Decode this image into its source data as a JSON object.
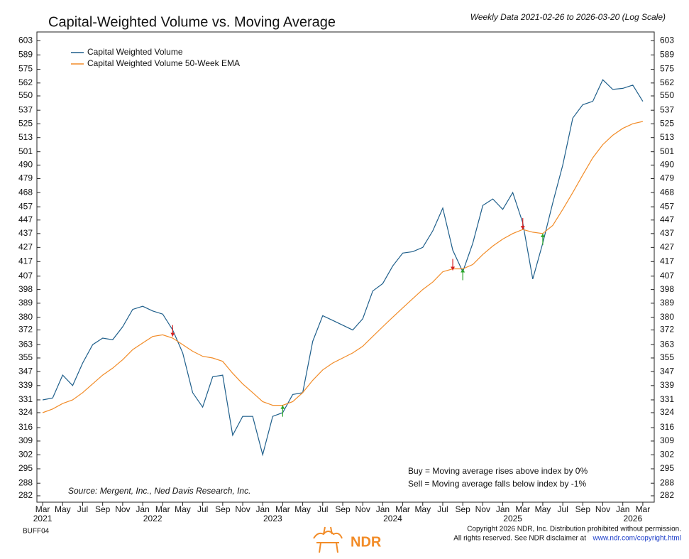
{
  "chart_data": {
    "type": "line",
    "title": "Capital-Weighted Volume vs. Moving Average",
    "subtitle": "Weekly Data 2021-02-26 to 2026-03-20 (Log Scale)",
    "log_scale": true,
    "legend_position": "upper-left",
    "x": [
      "2021-03",
      "2021-04",
      "2021-05",
      "2021-06",
      "2021-07",
      "2021-08",
      "2021-09",
      "2021-10",
      "2021-11",
      "2021-12",
      "2022-01",
      "2022-02",
      "2022-03",
      "2022-04",
      "2022-05",
      "2022-06",
      "2022-07",
      "2022-08",
      "2022-09",
      "2022-10",
      "2022-11",
      "2022-12",
      "2023-01",
      "2023-02",
      "2023-03",
      "2023-04",
      "2023-05",
      "2023-06",
      "2023-07",
      "2023-08",
      "2023-09",
      "2023-10",
      "2023-11",
      "2023-12",
      "2024-01",
      "2024-02",
      "2024-03",
      "2024-04",
      "2024-05",
      "2024-06",
      "2024-07",
      "2024-08",
      "2024-09",
      "2024-10",
      "2024-11",
      "2024-12",
      "2025-01",
      "2025-02",
      "2025-03",
      "2025-04",
      "2025-05",
      "2025-06",
      "2025-07",
      "2025-08",
      "2025-09",
      "2025-10",
      "2025-11",
      "2025-12",
      "2026-01",
      "2026-02",
      "2026-03"
    ],
    "series": [
      {
        "name": "Capital Weighted Volume",
        "color": "#1f5f8b",
        "values": [
          331,
          332,
          345,
          339,
          352,
          363,
          367,
          366,
          374,
          385,
          387,
          384,
          382,
          372,
          358,
          335,
          327,
          344,
          345,
          312,
          322,
          322,
          302,
          322,
          324,
          334,
          335,
          365,
          381,
          378,
          375,
          372,
          379,
          397,
          402,
          414,
          423,
          424,
          427,
          439,
          456,
          425,
          410,
          430,
          458,
          463,
          455,
          468,
          445,
          405,
          430,
          460,
          490,
          530,
          542,
          545,
          565,
          556,
          557,
          560,
          545
        ]
      },
      {
        "name": "Capital Weighted Volume 50-Week EMA",
        "color": "#f28c28",
        "values": [
          324,
          326,
          329,
          331,
          335,
          340,
          345,
          349,
          354,
          360,
          364,
          368,
          369,
          367,
          363,
          359,
          356,
          355,
          353,
          346,
          340,
          335,
          330,
          328,
          328,
          330,
          335,
          342,
          348,
          352,
          355,
          358,
          362,
          368,
          374,
          380,
          386,
          392,
          398,
          403,
          410,
          412,
          412,
          415,
          422,
          428,
          433,
          437,
          440,
          438,
          437,
          443,
          455,
          468,
          482,
          496,
          507,
          515,
          521,
          525,
          527
        ]
      }
    ],
    "sell_signals": {
      "color": "#d62020",
      "x": [
        "2022-04",
        "2024-08",
        "2025-03"
      ],
      "values": [
        368,
        411,
        440
      ]
    },
    "buy_signals": {
      "color": "#2aa52a",
      "x": [
        "2023-03",
        "2024-09",
        "2025-05"
      ],
      "values": [
        328,
        412,
        437
      ]
    },
    "xlim": [
      "2021-02",
      "2026-04"
    ],
    "xticks": [
      {
        "value": "2021-03",
        "label": "Mar"
      },
      {
        "value": "2021-05",
        "label": "May"
      },
      {
        "value": "2021-07",
        "label": "Jul"
      },
      {
        "value": "2021-09",
        "label": "Sep"
      },
      {
        "value": "2021-11",
        "label": "Nov"
      },
      {
        "value": "2022-01",
        "label": "Jan"
      },
      {
        "value": "2022-03",
        "label": "Mar"
      },
      {
        "value": "2022-05",
        "label": "May"
      },
      {
        "value": "2022-07",
        "label": "Jul"
      },
      {
        "value": "2022-09",
        "label": "Sep"
      },
      {
        "value": "2022-11",
        "label": "Nov"
      },
      {
        "value": "2023-01",
        "label": "Jan"
      },
      {
        "value": "2023-03",
        "label": "Mar"
      },
      {
        "value": "2023-05",
        "label": "May"
      },
      {
        "value": "2023-07",
        "label": "Jul"
      },
      {
        "value": "2023-09",
        "label": "Sep"
      },
      {
        "value": "2023-11",
        "label": "Nov"
      },
      {
        "value": "2024-01",
        "label": "Jan"
      },
      {
        "value": "2024-03",
        "label": "Mar"
      },
      {
        "value": "2024-05",
        "label": "May"
      },
      {
        "value": "2024-07",
        "label": "Jul"
      },
      {
        "value": "2024-09",
        "label": "Sep"
      },
      {
        "value": "2024-11",
        "label": "Nov"
      },
      {
        "value": "2025-01",
        "label": "Jan"
      },
      {
        "value": "2025-03",
        "label": "Mar"
      },
      {
        "value": "2025-05",
        "label": "May"
      },
      {
        "value": "2025-07",
        "label": "Jul"
      },
      {
        "value": "2025-09",
        "label": "Sep"
      },
      {
        "value": "2025-11",
        "label": "Nov"
      },
      {
        "value": "2026-01",
        "label": "Jan"
      },
      {
        "value": "2026-03",
        "label": "Mar"
      }
    ],
    "xyears": [
      {
        "value": "2021-03",
        "label": "2021"
      },
      {
        "value": "2022-02",
        "label": "2022"
      },
      {
        "value": "2023-02",
        "label": "2023"
      },
      {
        "value": "2024-02",
        "label": "2024"
      },
      {
        "value": "2025-02",
        "label": "2025"
      },
      {
        "value": "2026-02",
        "label": "2026"
      }
    ],
    "ylim": [
      279,
      612
    ],
    "yticks": [
      603,
      589,
      575,
      562,
      550,
      537,
      525,
      513,
      501,
      490,
      479,
      468,
      457,
      447,
      437,
      427,
      417,
      407,
      398,
      389,
      380,
      372,
      363,
      355,
      347,
      339,
      331,
      324,
      316,
      309,
      302,
      295,
      288,
      282
    ],
    "notes": [
      "Buy = Moving average rises above index by 0%",
      "Sell = Moving average falls below index by -1%"
    ],
    "source": "Source:  Mergent, Inc., Ned Davis Research, Inc."
  },
  "footer": {
    "code": "BUFF04",
    "logo": "NDR",
    "copyright": "Copyright 2026 NDR, Inc. Distribution prohibited without permission.",
    "rights": "All rights reserved. See NDR disclaimer at",
    "link": "www.ndr.com/copyright.html"
  }
}
